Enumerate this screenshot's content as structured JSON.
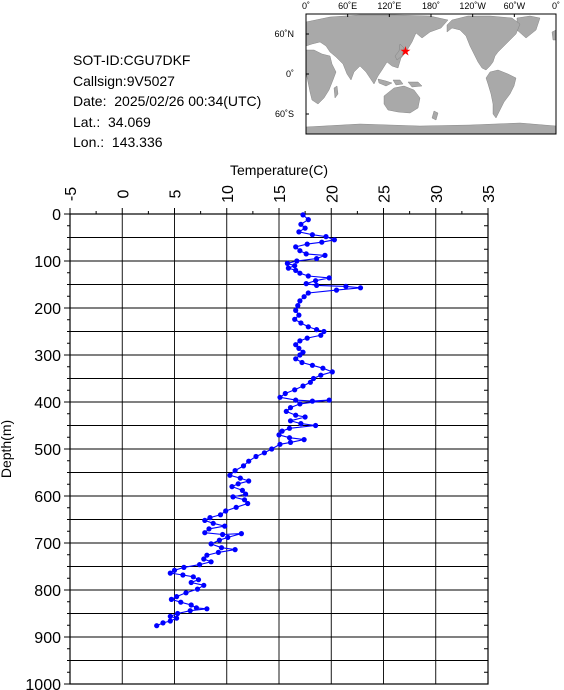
{
  "info": {
    "sot_id": "SOT-ID:CGU7DKF",
    "callsign": "Callsign:9V5027",
    "date": "Date:  2025/02/26 00:34(UTC)",
    "lat": "Lat.:  34.069",
    "lon": "Lon.:  143.336"
  },
  "map": {
    "lon_labels": [
      "0˚",
      "60˚E",
      "120˚E",
      "180˚",
      "120˚W",
      "60˚W",
      "0˚"
    ],
    "lat_labels": [
      "60˚N",
      "0˚",
      "60˚S"
    ],
    "marker": {
      "lon": 143.3,
      "lat": 34.1,
      "color": "#ff0000"
    },
    "land_color": "#a9a9a9",
    "ocean_color": "#ffffff"
  },
  "chart_data": {
    "type": "scatter",
    "title": "",
    "xlabel": "Temperature(C)",
    "ylabel": "Depth(m)",
    "xlim": [
      -5,
      35
    ],
    "ylim": [
      1000,
      0
    ],
    "x_ticks": [
      "-5",
      "0",
      "5",
      "10",
      "15",
      "20",
      "25",
      "30",
      "35"
    ],
    "y_ticks": [
      "0",
      "100",
      "200",
      "300",
      "400",
      "500",
      "600",
      "700",
      "800",
      "900",
      "1000"
    ],
    "grid": true,
    "series": [
      {
        "color": "#0000ff",
        "points": [
          [
            17.3,
            2
          ],
          [
            17.8,
            12
          ],
          [
            17.1,
            22
          ],
          [
            17.5,
            30
          ],
          [
            16.9,
            38
          ],
          [
            18.2,
            44
          ],
          [
            19.5,
            48
          ],
          [
            20.3,
            55
          ],
          [
            19.1,
            60
          ],
          [
            17.7,
            64
          ],
          [
            16.6,
            70
          ],
          [
            17.0,
            78
          ],
          [
            17.6,
            85
          ],
          [
            19.4,
            88
          ],
          [
            18.6,
            95
          ],
          [
            16.7,
            100
          ],
          [
            15.8,
            105
          ],
          [
            16.5,
            110
          ],
          [
            15.9,
            115
          ],
          [
            16.6,
            120
          ],
          [
            17.0,
            126
          ],
          [
            17.8,
            132
          ],
          [
            19.8,
            136
          ],
          [
            18.5,
            142
          ],
          [
            17.6,
            148
          ],
          [
            18.6,
            152
          ],
          [
            21.4,
            154
          ],
          [
            22.8,
            157
          ],
          [
            20.5,
            162
          ],
          [
            17.8,
            168
          ],
          [
            17.4,
            176
          ],
          [
            17.0,
            185
          ],
          [
            16.8,
            195
          ],
          [
            16.6,
            205
          ],
          [
            16.9,
            215
          ],
          [
            16.5,
            224
          ],
          [
            17.1,
            232
          ],
          [
            17.8,
            240
          ],
          [
            18.6,
            246
          ],
          [
            19.3,
            250
          ],
          [
            19.0,
            258
          ],
          [
            17.7,
            264
          ],
          [
            17.0,
            270
          ],
          [
            16.6,
            278
          ],
          [
            16.9,
            286
          ],
          [
            17.3,
            294
          ],
          [
            17.0,
            300
          ],
          [
            16.6,
            308
          ],
          [
            17.2,
            316
          ],
          [
            18.2,
            322
          ],
          [
            19.2,
            328
          ],
          [
            20.1,
            336
          ],
          [
            19.0,
            343
          ],
          [
            18.3,
            350
          ],
          [
            18.0,
            358
          ],
          [
            17.3,
            366
          ],
          [
            16.5,
            374
          ],
          [
            15.6,
            382
          ],
          [
            15.1,
            390
          ],
          [
            16.6,
            396
          ],
          [
            18.2,
            398
          ],
          [
            19.8,
            396
          ],
          [
            17.0,
            404
          ],
          [
            16.1,
            412
          ],
          [
            15.7,
            420
          ],
          [
            16.6,
            428
          ],
          [
            17.5,
            432
          ],
          [
            16.1,
            440
          ],
          [
            17.1,
            446
          ],
          [
            18.5,
            450
          ],
          [
            16.0,
            456
          ],
          [
            15.3,
            462
          ],
          [
            15.0,
            470
          ],
          [
            16.0,
            476
          ],
          [
            17.4,
            480
          ],
          [
            16.1,
            486
          ],
          [
            15.1,
            490
          ],
          [
            14.3,
            500
          ],
          [
            13.6,
            508
          ],
          [
            12.8,
            516
          ],
          [
            12.1,
            526
          ],
          [
            11.6,
            536
          ],
          [
            10.8,
            546
          ],
          [
            10.3,
            556
          ],
          [
            11.3,
            562
          ],
          [
            12.1,
            568
          ],
          [
            11.1,
            574
          ],
          [
            10.5,
            580
          ],
          [
            11.5,
            588
          ],
          [
            11.8,
            596
          ],
          [
            10.6,
            602
          ],
          [
            11.7,
            608
          ],
          [
            12.0,
            616
          ],
          [
            10.9,
            624
          ],
          [
            9.9,
            632
          ],
          [
            9.4,
            640
          ],
          [
            8.4,
            646
          ],
          [
            7.9,
            652
          ],
          [
            8.7,
            658
          ],
          [
            9.8,
            664
          ],
          [
            8.3,
            670
          ],
          [
            7.9,
            678
          ],
          [
            9.6,
            682
          ],
          [
            11.4,
            680
          ],
          [
            10.1,
            688
          ],
          [
            9.3,
            694
          ],
          [
            8.5,
            702
          ],
          [
            9.5,
            710
          ],
          [
            10.8,
            714
          ],
          [
            9.2,
            720
          ],
          [
            8.1,
            726
          ],
          [
            7.8,
            734
          ],
          [
            8.5,
            740
          ],
          [
            7.4,
            746
          ],
          [
            5.9,
            752
          ],
          [
            5.0,
            758
          ],
          [
            4.6,
            764
          ],
          [
            5.8,
            768
          ],
          [
            6.8,
            772
          ],
          [
            7.3,
            778
          ],
          [
            6.6,
            784
          ],
          [
            7.8,
            790
          ],
          [
            7.2,
            798
          ],
          [
            6.1,
            806
          ],
          [
            5.2,
            814
          ],
          [
            4.7,
            820
          ],
          [
            5.6,
            826
          ],
          [
            6.6,
            832
          ],
          [
            7.1,
            838
          ],
          [
            8.1,
            840
          ],
          [
            6.5,
            844
          ],
          [
            5.3,
            850
          ],
          [
            4.6,
            856
          ],
          [
            5.2,
            860
          ],
          [
            4.6,
            866
          ],
          [
            3.9,
            870
          ],
          [
            3.3,
            876
          ]
        ]
      }
    ]
  }
}
